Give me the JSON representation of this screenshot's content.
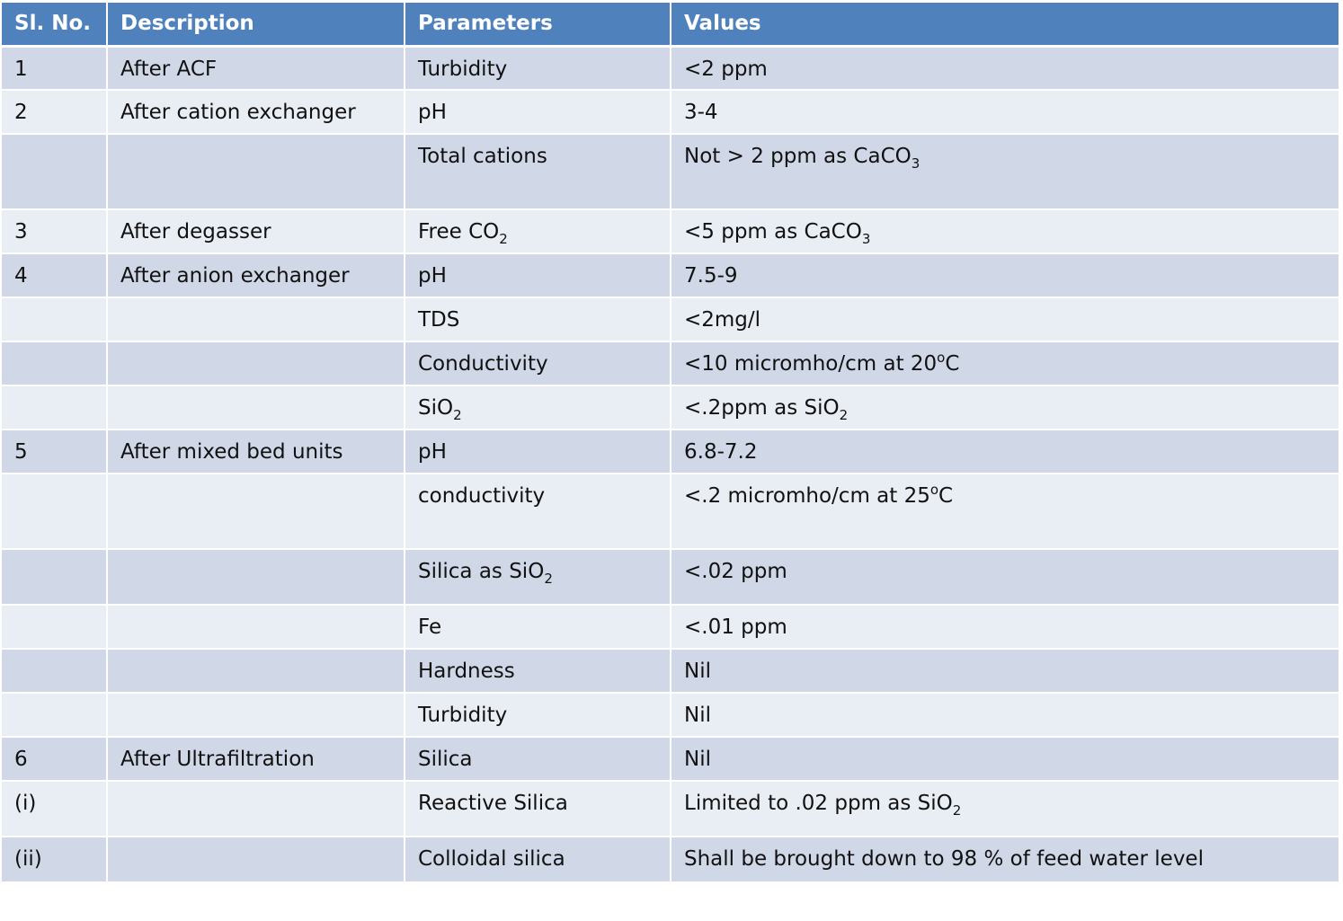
{
  "headers": [
    "Sl. No.",
    "Description",
    "Parameters",
    "Values"
  ],
  "rows": [
    {
      "sl": "1",
      "desc": "After ACF",
      "param": [
        {
          "t": "Turbidity"
        }
      ],
      "value": [
        {
          "t": "<2 ppm"
        }
      ]
    },
    {
      "sl": "2",
      "desc": "After cation exchanger",
      "param": [
        {
          "t": "pH"
        }
      ],
      "value": [
        {
          "t": "3-4"
        }
      ]
    },
    {
      "sl": "",
      "desc": "",
      "param": [
        {
          "t": "Total cations"
        }
      ],
      "value": [
        {
          "t": "Not > 2 ppm as CaCO"
        },
        {
          "t": "3",
          "sub": true
        }
      ]
    },
    {
      "sl": "3",
      "desc": "After degasser",
      "param": [
        {
          "t": "Free CO"
        },
        {
          "t": "2",
          "sub": true
        }
      ],
      "value": [
        {
          "t": "<5 ppm as CaCO"
        },
        {
          "t": "3",
          "sub": true
        }
      ]
    },
    {
      "sl": "4",
      "desc": "After anion exchanger",
      "param": [
        {
          "t": "pH"
        }
      ],
      "value": [
        {
          "t": "7.5-9"
        }
      ]
    },
    {
      "sl": "",
      "desc": "",
      "param": [
        {
          "t": "TDS"
        }
      ],
      "value": [
        {
          "t": "<2mg/l"
        }
      ]
    },
    {
      "sl": "",
      "desc": "",
      "param": [
        {
          "t": "Conductivity"
        }
      ],
      "value": [
        {
          "t": "<10 micromho/cm at 20"
        },
        {
          "t": "o",
          "sup": true
        },
        {
          "t": "C"
        }
      ]
    },
    {
      "sl": "",
      "desc": "",
      "param": [
        {
          "t": "SiO"
        },
        {
          "t": "2",
          "sub": true
        }
      ],
      "value": [
        {
          "t": "<.2ppm as SiO"
        },
        {
          "t": "2",
          "sub": true
        }
      ]
    },
    {
      "sl": "5",
      "desc": "After mixed bed units",
      "param": [
        {
          "t": "pH"
        }
      ],
      "value": [
        {
          "t": "6.8-7.2"
        }
      ]
    },
    {
      "sl": "",
      "desc": "",
      "param": [
        {
          "t": "conductivity"
        }
      ],
      "value": [
        {
          "t": "<.2 micromho/cm at 25"
        },
        {
          "t": "o",
          "sup": true
        },
        {
          "t": "C"
        }
      ]
    },
    {
      "sl": "",
      "desc": "",
      "param": [
        {
          "t": "Silica as SiO"
        },
        {
          "t": "2",
          "sub": true
        }
      ],
      "value": [
        {
          "t": "<.02 ppm"
        }
      ]
    },
    {
      "sl": "",
      "desc": "",
      "param": [
        {
          "t": "Fe"
        }
      ],
      "value": [
        {
          "t": "<.01 ppm"
        }
      ]
    },
    {
      "sl": "",
      "desc": "",
      "param": [
        {
          "t": "Hardness"
        }
      ],
      "value": [
        {
          "t": "Nil"
        }
      ]
    },
    {
      "sl": "",
      "desc": "",
      "param": [
        {
          "t": "Turbidity"
        }
      ],
      "value": [
        {
          "t": "Nil"
        }
      ]
    },
    {
      "sl": "6",
      "desc": "After Ultrafiltration",
      "param": [
        {
          "t": "Silica"
        }
      ],
      "value": [
        {
          "t": "Nil"
        }
      ]
    },
    {
      "sl": "(i)",
      "desc": "",
      "param": [
        {
          "t": "Reactive Silica"
        }
      ],
      "value": [
        {
          "t": "Limited to .02 ppm as SiO"
        },
        {
          "t": "2",
          "sub": true
        }
      ]
    },
    {
      "sl": "(ii)",
      "desc": "",
      "param": [
        {
          "t": "Colloidal silica"
        }
      ],
      "value": [
        {
          "t": "Shall be brought down to 98 % of feed water level"
        }
      ]
    }
  ]
}
